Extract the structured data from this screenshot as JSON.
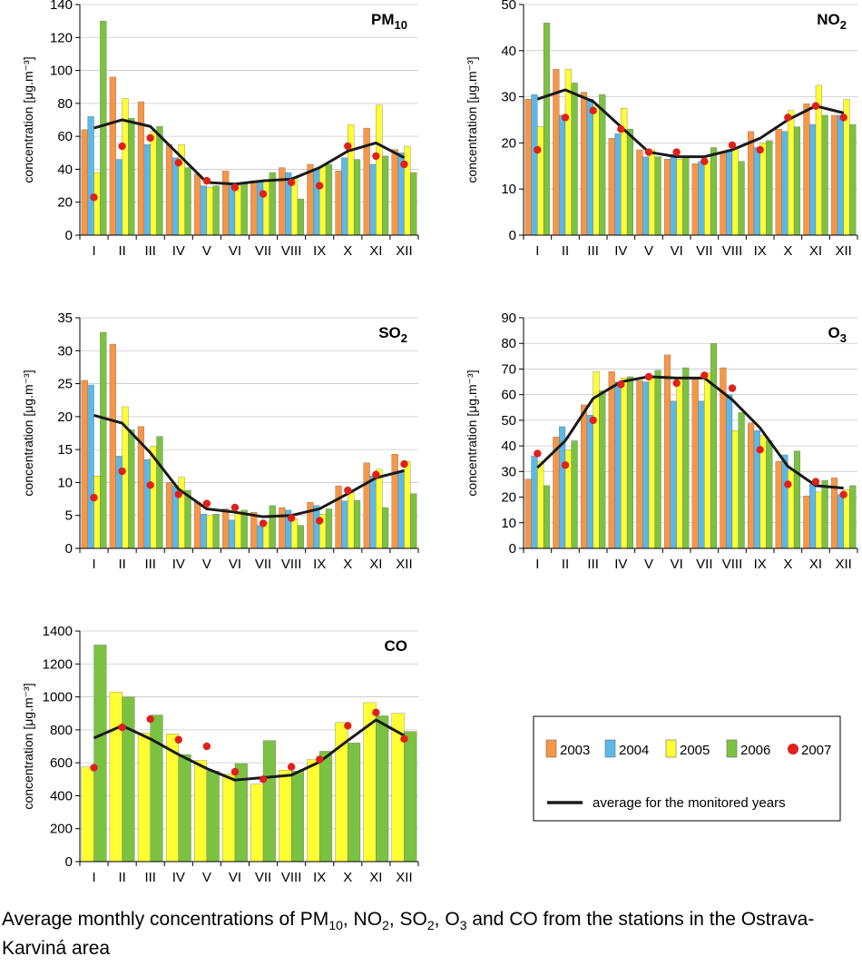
{
  "months": [
    "I",
    "II",
    "III",
    "IV",
    "V",
    "VI",
    "VII",
    "VIII",
    "IX",
    "X",
    "XI",
    "XII"
  ],
  "colors": {
    "2003": "#f79646",
    "2004": "#5bb8e8",
    "2005": "#ffff33",
    "2006": "#7cc242",
    "2007": "#e0201b",
    "average": "#1a1a1a"
  },
  "legend": {
    "series_labels": [
      "2003",
      "2004",
      "2005",
      "2006",
      "2007"
    ],
    "average_label": "average for the monitored years"
  },
  "caption": {
    "p1": "Average monthly concentrations of PM",
    "s1": "10",
    "p2": ", NO",
    "s2": "2",
    "p3": ", SO",
    "s3": "2",
    "p4": ", O",
    "s4": "3",
    "p5": " and CO from the stations in the Ostrava-Karviná area"
  },
  "chart_data": [
    {
      "type": "bar",
      "title": "PM",
      "title_sub": "10",
      "ylabel": "concentration [μg.m⁻³]",
      "ylim": [
        0,
        140
      ],
      "yticks": [
        0,
        20,
        40,
        60,
        80,
        100,
        120,
        140
      ],
      "categories": [
        "I",
        "II",
        "III",
        "IV",
        "V",
        "VI",
        "VII",
        "VIII",
        "IX",
        "X",
        "XI",
        "XII"
      ],
      "series": [
        {
          "name": "2003",
          "values": [
            64,
            96,
            81,
            55,
            37,
            39,
            33,
            41,
            43,
            39,
            65,
            52
          ]
        },
        {
          "name": "2004",
          "values": [
            72,
            46,
            55,
            47,
            30,
            31,
            33,
            38,
            40,
            47,
            43,
            50
          ]
        },
        {
          "name": "2005",
          "values": [
            38,
            83,
            63,
            55,
            29,
            30,
            33,
            35,
            42,
            67,
            79,
            54
          ]
        },
        {
          "name": "2006",
          "values": [
            130,
            71,
            66,
            41,
            30,
            31,
            38,
            22,
            43,
            46,
            48,
            38
          ]
        }
      ],
      "points_2007": [
        23,
        54,
        59,
        44,
        33,
        29,
        25,
        32,
        30,
        54,
        48,
        43
      ],
      "average": [
        65,
        70,
        66,
        49,
        32,
        31,
        33,
        34,
        41,
        51,
        56,
        47
      ]
    },
    {
      "type": "bar",
      "title": "NO",
      "title_sub": "2",
      "ylabel": "concentration [μg.m⁻³]",
      "ylim": [
        0,
        50
      ],
      "yticks": [
        0,
        10,
        20,
        30,
        40,
        50
      ],
      "categories": [
        "I",
        "II",
        "III",
        "IV",
        "V",
        "VI",
        "VII",
        "VIII",
        "IX",
        "X",
        "XI",
        "XII"
      ],
      "series": [
        {
          "name": "2003",
          "values": [
            29.5,
            36,
            31,
            21,
            18.5,
            16.5,
            15.5,
            18,
            22.5,
            23,
            28.5,
            26
          ]
        },
        {
          "name": "2004",
          "values": [
            30.5,
            26,
            29.5,
            22,
            17,
            17.5,
            16,
            18.5,
            19,
            22.5,
            24,
            26
          ]
        },
        {
          "name": "2005",
          "values": [
            23.5,
            36,
            28,
            27.5,
            18.5,
            16.5,
            16,
            19,
            20,
            27,
            32.5,
            29.5
          ]
        },
        {
          "name": "2006",
          "values": [
            46,
            33,
            30.5,
            23,
            17,
            17,
            19,
            16,
            20.5,
            23.5,
            26,
            24
          ]
        }
      ],
      "points_2007": [
        18.5,
        25.5,
        27,
        23,
        18,
        18,
        16,
        19.5,
        18.5,
        25.5,
        28,
        25.5
      ],
      "average": [
        29.5,
        31.5,
        29,
        23.5,
        18,
        17,
        17,
        18.5,
        21,
        25,
        28,
        26.5
      ]
    },
    {
      "type": "bar",
      "title": "SO",
      "title_sub": "2",
      "ylabel": "concentration [μg.m⁻³]",
      "ylim": [
        0,
        35
      ],
      "yticks": [
        0,
        5,
        10,
        15,
        20,
        25,
        30,
        35
      ],
      "categories": [
        "I",
        "II",
        "III",
        "IV",
        "V",
        "VI",
        "VII",
        "VIII",
        "IX",
        "X",
        "XI",
        "XII"
      ],
      "series": [
        {
          "name": "2003",
          "values": [
            25.5,
            31,
            18.5,
            10,
            7,
            6,
            5.5,
            6.2,
            7,
            9.5,
            13,
            14.3
          ]
        },
        {
          "name": "2004",
          "values": [
            24.8,
            14,
            13.5,
            9.5,
            5.2,
            4.3,
            3.5,
            5.8,
            6.5,
            7.2,
            11,
            11.5
          ]
        },
        {
          "name": "2005",
          "values": [
            11,
            21.5,
            15.5,
            10.8,
            5,
            5.3,
            4,
            4.5,
            5.2,
            8.5,
            12,
            13.2
          ]
        },
        {
          "name": "2006",
          "values": [
            32.8,
            18,
            17,
            8.8,
            5.2,
            5.8,
            6.5,
            3.5,
            6,
            7.3,
            6.2,
            8.3
          ]
        }
      ],
      "points_2007": [
        7.7,
        11.7,
        9.6,
        8.2,
        6.8,
        6.2,
        3.8,
        4.6,
        4.2,
        8.8,
        11.2,
        12.8
      ],
      "average": [
        20.2,
        19,
        14.5,
        9,
        6,
        5.5,
        4.8,
        5,
        6,
        8.3,
        10.7,
        11.8
      ]
    },
    {
      "type": "bar",
      "title": "O",
      "title_sub": "3",
      "ylabel": "concentration [μg.m⁻³]",
      "ylim": [
        0,
        90
      ],
      "yticks": [
        0,
        10,
        20,
        30,
        40,
        50,
        60,
        70,
        80,
        90
      ],
      "categories": [
        "I",
        "II",
        "III",
        "IV",
        "V",
        "VI",
        "VII",
        "VIII",
        "IX",
        "X",
        "XI",
        "XII"
      ],
      "series": [
        {
          "name": "2003",
          "values": [
            27,
            43.5,
            56,
            69,
            65.5,
            75.5,
            66,
            70.5,
            49,
            34,
            20.5,
            27.5
          ]
        },
        {
          "name": "2004",
          "values": [
            36,
            47.5,
            52,
            65,
            65,
            57.5,
            57.5,
            60,
            46,
            36.5,
            25,
            21
          ]
        },
        {
          "name": "2005",
          "values": [
            34,
            38.5,
            69,
            66.5,
            67,
            66.5,
            68.5,
            46,
            44,
            30.5,
            22,
            23
          ]
        },
        {
          "name": "2006",
          "values": [
            24.5,
            42,
            61.5,
            67,
            69.5,
            70.5,
            80,
            53,
            42,
            38,
            26.5,
            24.5
          ]
        }
      ],
      "points_2007": [
        37,
        32.5,
        50,
        64,
        67,
        64.5,
        67.5,
        62.5,
        38.5,
        25,
        26,
        21
      ],
      "average": [
        31.5,
        42,
        58.5,
        65,
        67,
        66.5,
        66.5,
        58,
        47,
        32,
        24.5,
        23.5
      ]
    },
    {
      "type": "bar",
      "title": "CO",
      "title_sub": "",
      "ylabel": "concentration [μg.m⁻³]",
      "ylim": [
        0,
        1400
      ],
      "yticks": [
        0,
        200,
        400,
        600,
        800,
        1000,
        1200,
        1400
      ],
      "categories": [
        "I",
        "II",
        "III",
        "IV",
        "V",
        "VI",
        "VII",
        "VIII",
        "IX",
        "X",
        "XI",
        "XII"
      ],
      "series": [
        {
          "name": "2005",
          "values": [
            575,
            1030,
            780,
            775,
            615,
            530,
            470,
            555,
            620,
            845,
            965,
            900
          ]
        },
        {
          "name": "2006",
          "values": [
            1315,
            1000,
            890,
            650,
            550,
            595,
            735,
            550,
            670,
            720,
            885,
            790
          ]
        }
      ],
      "points_2007": [
        570,
        815,
        865,
        740,
        700,
        545,
        500,
        575,
        620,
        825,
        905,
        745
      ],
      "average": [
        750,
        825,
        745,
        650,
        565,
        495,
        510,
        525,
        605,
        735,
        860,
        765
      ]
    }
  ]
}
